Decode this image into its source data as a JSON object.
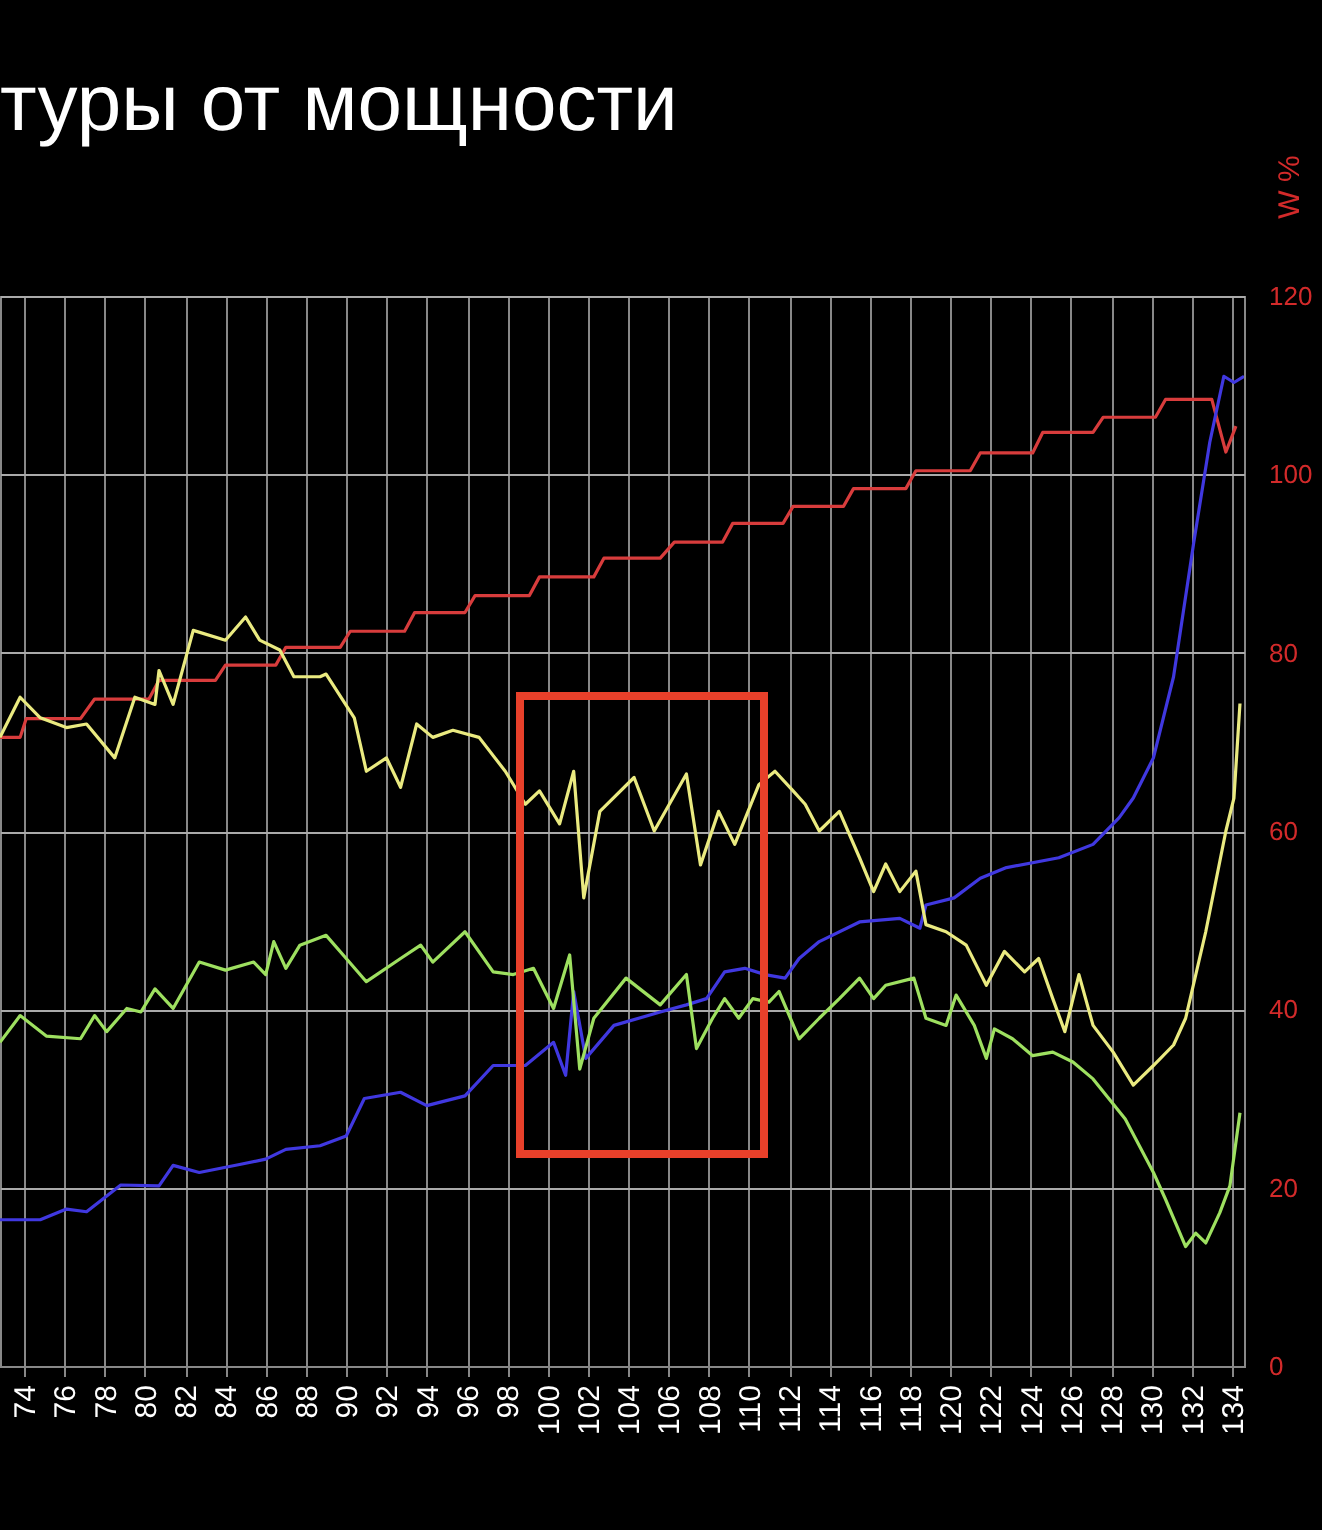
{
  "chart_data": {
    "type": "line",
    "title": "туры от мощности",
    "ylabel": "W %",
    "xlim": [
      72.8,
      134.6
    ],
    "xticks": [
      74,
      76,
      78,
      80,
      82,
      84,
      86,
      88,
      90,
      92,
      94,
      96,
      98,
      100,
      102,
      104,
      106,
      108,
      110,
      112,
      114,
      116,
      118,
      120,
      122,
      124,
      126,
      128,
      130,
      132,
      134
    ],
    "ylim": [
      0,
      120
    ],
    "yticks": [
      0,
      20,
      40,
      60,
      80,
      100,
      120
    ],
    "grid": true,
    "line_style": "solid",
    "series": [
      {
        "color": "#d83c3c",
        "x": [
          72.8,
          73.8,
          74.1,
          76.8,
          77.5,
          80.2,
          80.7,
          83.5,
          84.0,
          86.5,
          87.0,
          89.7,
          90.2,
          92.9,
          93.4,
          95.9,
          96.4,
          99.1,
          99.6,
          102.3,
          102.8,
          105.6,
          106.3,
          108.7,
          109.2,
          111.7,
          112.2,
          114.7,
          115.2,
          117.8,
          118.3,
          121.0,
          121.5,
          124.1,
          124.6,
          127.1,
          127.6,
          130.2,
          130.7,
          133.0,
          133.7,
          134.2
        ],
        "values": [
          70.5,
          70.5,
          72.6,
          72.6,
          74.8,
          74.8,
          76.9,
          76.9,
          78.6,
          78.6,
          80.6,
          80.6,
          82.4,
          82.4,
          84.5,
          84.5,
          86.4,
          86.4,
          88.5,
          88.5,
          90.6,
          90.6,
          92.4,
          92.4,
          94.5,
          94.5,
          96.4,
          96.4,
          98.4,
          98.4,
          100.4,
          100.4,
          102.4,
          102.4,
          104.7,
          104.7,
          106.4,
          106.4,
          108.4,
          108.4,
          102.5,
          105.4
        ]
      },
      {
        "color": "#4038e0",
        "x": [
          72.8,
          74.8,
          76.1,
          77.1,
          78.8,
          80.7,
          81.4,
          82.7,
          84.7,
          86.0,
          87.0,
          88.7,
          90.0,
          90.9,
          92.7,
          94.0,
          95.9,
          97.3,
          98.9,
          100.3,
          100.9,
          101.3,
          101.9,
          103.3,
          105.6,
          106.9,
          107.9,
          108.8,
          109.8,
          110.8,
          111.8,
          112.5,
          113.5,
          115.5,
          117.5,
          118.5,
          118.8,
          120.2,
          121.5,
          122.8,
          125.4,
          127.1,
          128.4,
          129.1,
          130.1,
          131.1,
          132.1,
          132.9,
          133.6,
          134.1,
          134.6
        ],
        "values": [
          16.4,
          16.4,
          17.6,
          17.3,
          20.3,
          20.2,
          22.5,
          21.7,
          22.6,
          23.2,
          24.3,
          24.7,
          25.8,
          30.0,
          30.7,
          29.2,
          30.3,
          33.7,
          33.7,
          36.3,
          32.6,
          42.0,
          34.5,
          38.2,
          39.7,
          40.5,
          41.2,
          44.2,
          44.6,
          43.9,
          43.5,
          45.7,
          47.6,
          49.8,
          50.2,
          49.1,
          51.7,
          52.5,
          54.7,
          55.9,
          57.0,
          58.5,
          61.5,
          63.7,
          68.2,
          77.3,
          92.3,
          103.6,
          111.0,
          110.3,
          111.0
        ]
      },
      {
        "color": "#eaea80",
        "x": [
          72.8,
          73.8,
          74.8,
          76.1,
          77.1,
          78.5,
          79.5,
          80.5,
          80.7,
          81.4,
          82.4,
          84.0,
          85.0,
          85.7,
          86.7,
          87.4,
          88.7,
          89.0,
          90.4,
          91.0,
          92.0,
          92.7,
          93.5,
          94.3,
          95.3,
          96.6,
          97.9,
          98.9,
          99.6,
          100.6,
          101.3,
          101.8,
          102.6,
          104.3,
          105.3,
          106.9,
          107.6,
          108.5,
          109.3,
          110.5,
          111.3,
          112.2,
          112.8,
          113.5,
          114.5,
          115.5,
          116.2,
          116.8,
          117.5,
          118.3,
          118.8,
          119.8,
          120.8,
          121.8,
          122.7,
          123.7,
          124.4,
          125.1,
          125.7,
          126.4,
          127.1,
          128.1,
          129.1,
          130.1,
          131.1,
          131.7,
          132.7,
          133.7,
          134.1,
          134.4
        ],
        "values": [
          70.5,
          75.0,
          72.7,
          71.6,
          72.0,
          68.2,
          75.0,
          74.2,
          78.0,
          74.2,
          82.5,
          81.4,
          84.0,
          81.4,
          80.3,
          77.3,
          77.3,
          77.6,
          72.7,
          66.7,
          68.2,
          64.9,
          72.0,
          70.5,
          71.3,
          70.5,
          66.7,
          63.0,
          64.5,
          60.8,
          66.7,
          52.5,
          62.2,
          66.0,
          60.0,
          66.4,
          56.2,
          62.2,
          58.5,
          65.2,
          66.7,
          64.5,
          63.0,
          60.0,
          62.2,
          57.0,
          53.2,
          56.3,
          53.2,
          55.5,
          49.5,
          48.7,
          47.2,
          42.7,
          46.5,
          44.2,
          45.7,
          41.2,
          37.5,
          43.9,
          38.2,
          35.2,
          31.5,
          33.7,
          36.0,
          39.0,
          48.7,
          60.0,
          63.7,
          74.3
        ]
      },
      {
        "color": "#9ee060",
        "x": [
          72.8,
          73.8,
          75.1,
          76.8,
          77.5,
          78.1,
          79.1,
          79.8,
          80.5,
          81.4,
          82.7,
          84.0,
          85.4,
          86.0,
          86.4,
          87.0,
          87.7,
          89.0,
          90.0,
          91.0,
          92.7,
          93.7,
          94.3,
          95.9,
          97.3,
          98.3,
          99.3,
          100.3,
          101.1,
          101.6,
          102.3,
          103.9,
          105.6,
          106.9,
          107.4,
          108.2,
          108.8,
          109.5,
          110.2,
          111.0,
          111.5,
          112.5,
          113.5,
          114.5,
          115.5,
          116.2,
          116.8,
          118.2,
          118.8,
          119.8,
          120.3,
          121.2,
          121.8,
          122.2,
          123.1,
          124.1,
          125.1,
          126.1,
          127.1,
          128.7,
          130.1,
          130.7,
          131.7,
          132.2,
          132.7,
          133.4,
          133.9,
          134.4
        ],
        "values": [
          36.3,
          39.3,
          37.0,
          36.7,
          39.3,
          37.5,
          40.1,
          39.7,
          42.3,
          40.1,
          45.3,
          44.4,
          45.3,
          43.9,
          47.6,
          44.6,
          47.2,
          48.3,
          45.7,
          43.1,
          45.7,
          47.2,
          45.3,
          48.7,
          44.2,
          43.9,
          44.6,
          40.1,
          46.1,
          33.3,
          39.0,
          43.5,
          40.5,
          43.9,
          35.6,
          39.0,
          41.2,
          39.0,
          41.2,
          40.8,
          42.0,
          36.7,
          39.0,
          41.2,
          43.5,
          41.2,
          42.7,
          43.5,
          39.0,
          38.2,
          41.6,
          38.2,
          34.5,
          37.8,
          36.7,
          34.8,
          35.2,
          34.1,
          32.2,
          27.7,
          21.7,
          18.7,
          13.4,
          14.9,
          13.8,
          17.2,
          20.2,
          28.4
        ]
      }
    ]
  }
}
